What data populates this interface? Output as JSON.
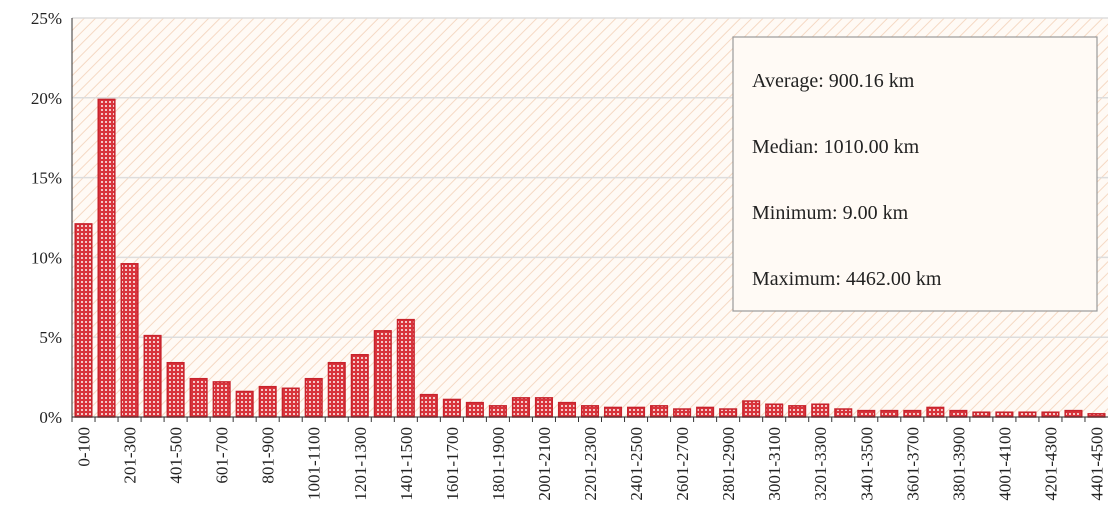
{
  "chart_data": {
    "type": "bar",
    "categories": [
      "0-100",
      null,
      "201-300",
      null,
      "401-500",
      null,
      "601-700",
      null,
      "801-900",
      null,
      "1001-1100",
      null,
      "1201-1300",
      null,
      "1401-1500",
      null,
      "1601-1700",
      null,
      "1801-1900",
      null,
      "2001-2100",
      null,
      "2201-2300",
      null,
      "2401-2500",
      null,
      "2601-2700",
      null,
      "2801-2900",
      null,
      "3001-3100",
      null,
      "3201-3300",
      null,
      "3401-3500",
      null,
      "3601-3700",
      null,
      "3801-3900",
      null,
      "4001-4100",
      null,
      "4201-4300",
      null,
      "4401-4500"
    ],
    "values": [
      12.1,
      19.9,
      9.6,
      5.1,
      3.4,
      2.4,
      2.2,
      1.6,
      1.9,
      1.8,
      2.4,
      3.4,
      3.9,
      5.4,
      6.1,
      1.4,
      1.1,
      0.9,
      0.7,
      1.2,
      1.2,
      0.9,
      0.7,
      0.6,
      0.6,
      0.7,
      0.5,
      0.6,
      0.5,
      1.0,
      0.8,
      0.7,
      0.8,
      0.5,
      0.4,
      0.4,
      0.4,
      0.6,
      0.4,
      0.3,
      0.3,
      0.3,
      0.3,
      0.4,
      0.2
    ],
    "color": "#c8232c",
    "ylim": [
      0,
      25
    ],
    "yticks": [
      {
        "value": 0,
        "label": "0%"
      },
      {
        "value": 5,
        "label": "5%"
      },
      {
        "value": 10,
        "label": "10%"
      },
      {
        "value": 15,
        "label": "15%"
      },
      {
        "value": 20,
        "label": "20%"
      },
      {
        "value": 25,
        "label": "25%"
      }
    ],
    "grid": true,
    "annotations": [
      "Average: 900.16 km",
      "Median: 1010.00 km",
      "Minimum: 9.00 km",
      "Maximum: 4462.00 km"
    ]
  }
}
